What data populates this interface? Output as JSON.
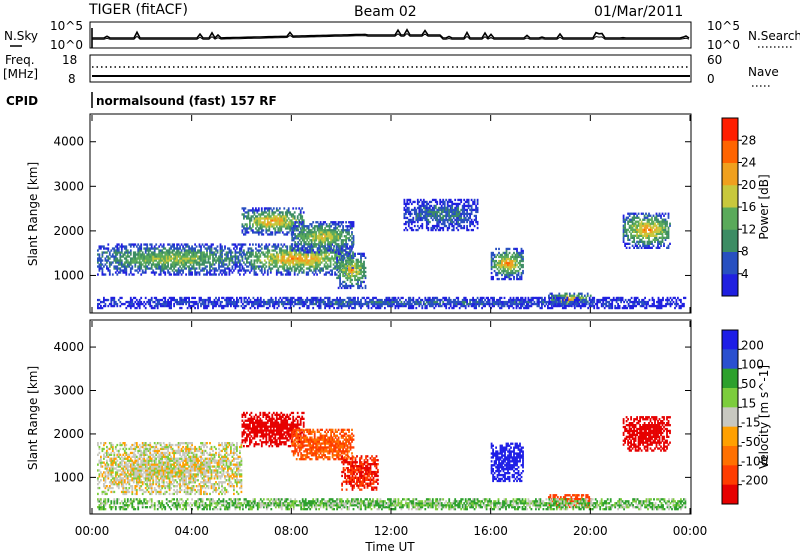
{
  "header": {
    "radar": "TIGER (fitACF)",
    "beam": "Beam 02",
    "date": "01/Mar/2011"
  },
  "status_panel": {
    "nsky_label": "N.Sky",
    "nsky_ticks": [
      "10^5",
      "10^0"
    ],
    "nsearch_label": "N.Search",
    "nsearch_ticks": [
      "10^5",
      "10^0"
    ],
    "freq_label": [
      "Freq.",
      "[MHz]"
    ],
    "freq_ticks": [
      "18",
      "8"
    ],
    "nave_label": "Nave",
    "nave_ticks": [
      "60",
      "0"
    ],
    "cpid_label": "CPID",
    "cpid_text": "normalsound (fast) 157 RF"
  },
  "colors": {
    "power_scale": [
      "#2020e0",
      "#2850c0",
      "#3c8c64",
      "#5aaa5a",
      "#c8c83c",
      "#f0a01e",
      "#ff6400",
      "#ff1e00"
    ],
    "velocity_scale": [
      "#1e1ee6",
      "#2a50d0",
      "#2ca02c",
      "#7ccd3c",
      "#c8c8c0",
      "#ffa000",
      "#ff7000",
      "#ff3c00",
      "#e60000"
    ]
  },
  "chart_data": [
    {
      "type": "heatmap",
      "name": "power",
      "ylabel": "Slant Range [km]",
      "xlabel": "Time UT",
      "x_ticks": [
        "00:00",
        "04:00",
        "08:00",
        "12:00",
        "16:00",
        "20:00",
        "00:00"
      ],
      "y_ticks": [
        1000,
        2000,
        3000,
        4000
      ],
      "xlim": [
        0,
        24
      ],
      "ylim": [
        180,
        4600
      ],
      "colorbar": {
        "label": "Power [dB]",
        "ticks": [
          4,
          8,
          12,
          16,
          20,
          24,
          28
        ],
        "range": [
          0,
          32
        ]
      },
      "regions": [
        {
          "t": [
            0.2,
            6.0
          ],
          "r": [
            1000,
            1700
          ],
          "peak": 18
        },
        {
          "t": [
            6.0,
            10.5
          ],
          "r": [
            1000,
            1700
          ],
          "peak": 24
        },
        {
          "t": [
            6.0,
            8.5
          ],
          "r": [
            1900,
            2500
          ],
          "peak": 24
        },
        {
          "t": [
            8.0,
            10.5
          ],
          "r": [
            1500,
            2200
          ],
          "peak": 20
        },
        {
          "t": [
            9.8,
            11.0
          ],
          "r": [
            700,
            1500
          ],
          "peak": 22
        },
        {
          "t": [
            12.5,
            15.5
          ],
          "r": [
            2000,
            2700
          ],
          "peak": 10
        },
        {
          "t": [
            16.0,
            17.3
          ],
          "r": [
            900,
            1600
          ],
          "peak": 24
        },
        {
          "t": [
            18.3,
            20.0
          ],
          "r": [
            300,
            600
          ],
          "peak": 24
        },
        {
          "t": [
            21.3,
            23.2
          ],
          "r": [
            1600,
            2400
          ],
          "peak": 24
        },
        {
          "t": [
            0.2,
            23.8
          ],
          "r": [
            250,
            500
          ],
          "peak": 8
        }
      ]
    },
    {
      "type": "heatmap",
      "name": "velocity",
      "ylabel": "Slant Range [km]",
      "xlabel": "Time UT",
      "x_ticks": [
        "00:00",
        "04:00",
        "08:00",
        "12:00",
        "16:00",
        "20:00",
        "00:00"
      ],
      "y_ticks": [
        1000,
        2000,
        3000,
        4000
      ],
      "xlim": [
        0,
        24
      ],
      "ylim": [
        180,
        4600
      ],
      "colorbar": {
        "label": "Velocity [m s^-1]",
        "ticks": [
          "200",
          "100",
          "50",
          "15",
          "-15",
          "-50",
          "-100",
          "-200"
        ],
        "range": [
          -250,
          250
        ]
      },
      "regions": [
        {
          "t": [
            0.2,
            6.0
          ],
          "r": [
            600,
            1800
          ],
          "v": 0
        },
        {
          "t": [
            6.0,
            8.5
          ],
          "r": [
            1700,
            2500
          ],
          "v": -200
        },
        {
          "t": [
            8.0,
            10.5
          ],
          "r": [
            1400,
            2100
          ],
          "v": -80
        },
        {
          "t": [
            10.0,
            11.5
          ],
          "r": [
            700,
            1500
          ],
          "v": -150
        },
        {
          "t": [
            16.0,
            17.3
          ],
          "r": [
            900,
            1800
          ],
          "v": 200
        },
        {
          "t": [
            18.3,
            20.0
          ],
          "r": [
            300,
            600
          ],
          "v": -100
        },
        {
          "t": [
            21.3,
            23.2
          ],
          "r": [
            1600,
            2400
          ],
          "v": -200
        },
        {
          "t": [
            0.2,
            23.8
          ],
          "r": [
            250,
            500
          ],
          "v": 30
        }
      ]
    }
  ]
}
